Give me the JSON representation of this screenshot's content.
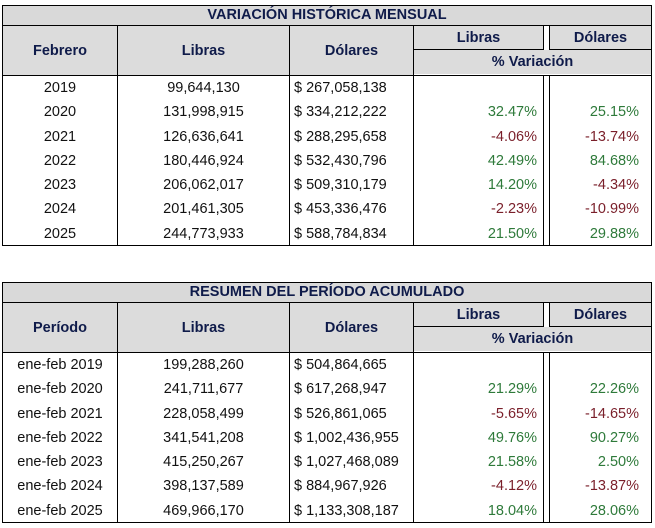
{
  "table1": {
    "title": "VARIACIÓN HISTÓRICA MENSUAL",
    "headers": {
      "period": "Febrero",
      "libras": "Libras",
      "dolares": "Dólares",
      "var_libras": "Libras",
      "var_dolares": "Dólares",
      "variacion": "% Variación"
    },
    "rows": [
      {
        "period": "2019",
        "libras": "99,644,130",
        "dolares": "$ 267,058,138",
        "var_libras": "",
        "var_dolares": "",
        "ls": "",
        "ds": ""
      },
      {
        "period": "2020",
        "libras": "131,998,915",
        "dolares": "$ 334,212,222",
        "var_libras": "32.47%",
        "var_dolares": "25.15%",
        "ls": "pos",
        "ds": "pos"
      },
      {
        "period": "2021",
        "libras": "126,636,641",
        "dolares": "$ 288,295,658",
        "var_libras": "-4.06%",
        "var_dolares": "-13.74%",
        "ls": "neg",
        "ds": "neg"
      },
      {
        "period": "2022",
        "libras": "180,446,924",
        "dolares": "$ 532,430,796",
        "var_libras": "42.49%",
        "var_dolares": "84.68%",
        "ls": "pos",
        "ds": "pos"
      },
      {
        "period": "2023",
        "libras": "206,062,017",
        "dolares": "$ 509,310,179",
        "var_libras": "14.20%",
        "var_dolares": "-4.34%",
        "ls": "pos",
        "ds": "neg"
      },
      {
        "period": "2024",
        "libras": "201,461,305",
        "dolares": "$ 453,336,476",
        "var_libras": "-2.23%",
        "var_dolares": "-10.99%",
        "ls": "neg",
        "ds": "neg"
      },
      {
        "period": "2025",
        "libras": "244,773,933",
        "dolares": "$ 588,784,834",
        "var_libras": "21.50%",
        "var_dolares": "29.88%",
        "ls": "pos",
        "ds": "pos"
      }
    ]
  },
  "table2": {
    "title": "RESUMEN DEL PERÍODO ACUMULADO",
    "headers": {
      "period": "Período",
      "libras": "Libras",
      "dolares": "Dólares",
      "var_libras": "Libras",
      "var_dolares": "Dólares",
      "variacion": "% Variación"
    },
    "rows": [
      {
        "period": "ene-feb 2019",
        "libras": "199,288,260",
        "dolares": "$ 504,864,665",
        "var_libras": "",
        "var_dolares": "",
        "ls": "",
        "ds": ""
      },
      {
        "period": "ene-feb 2020",
        "libras": "241,711,677",
        "dolares": "$ 617,268,947",
        "var_libras": "21.29%",
        "var_dolares": "22.26%",
        "ls": "pos",
        "ds": "pos"
      },
      {
        "period": "ene-feb 2021",
        "libras": "228,058,499",
        "dolares": "$ 526,861,065",
        "var_libras": "-5.65%",
        "var_dolares": "-14.65%",
        "ls": "neg",
        "ds": "neg"
      },
      {
        "period": "ene-feb 2022",
        "libras": "341,541,208",
        "dolares": "$ 1,002,436,955",
        "var_libras": "49.76%",
        "var_dolares": "90.27%",
        "ls": "pos",
        "ds": "pos"
      },
      {
        "period": "ene-feb 2023",
        "libras": "415,250,267",
        "dolares": "$ 1,027,468,089",
        "var_libras": "21.58%",
        "var_dolares": "2.50%",
        "ls": "pos",
        "ds": "pos"
      },
      {
        "period": "ene-feb 2024",
        "libras": "398,137,589",
        "dolares": "$ 884,967,926",
        "var_libras": "-4.12%",
        "var_dolares": "-13.87%",
        "ls": "neg",
        "ds": "neg"
      },
      {
        "period": "ene-feb 2025",
        "libras": "469,966,170",
        "dolares": "$ 1,133,308,187",
        "var_libras": "18.04%",
        "var_dolares": "28.06%",
        "ls": "pos",
        "ds": "pos"
      }
    ]
  },
  "colors": {
    "positive": "#2e7a3a",
    "negative": "#7a1f2a",
    "header_bg": "#dcdcdc",
    "header_text": "#0f1b4a"
  }
}
